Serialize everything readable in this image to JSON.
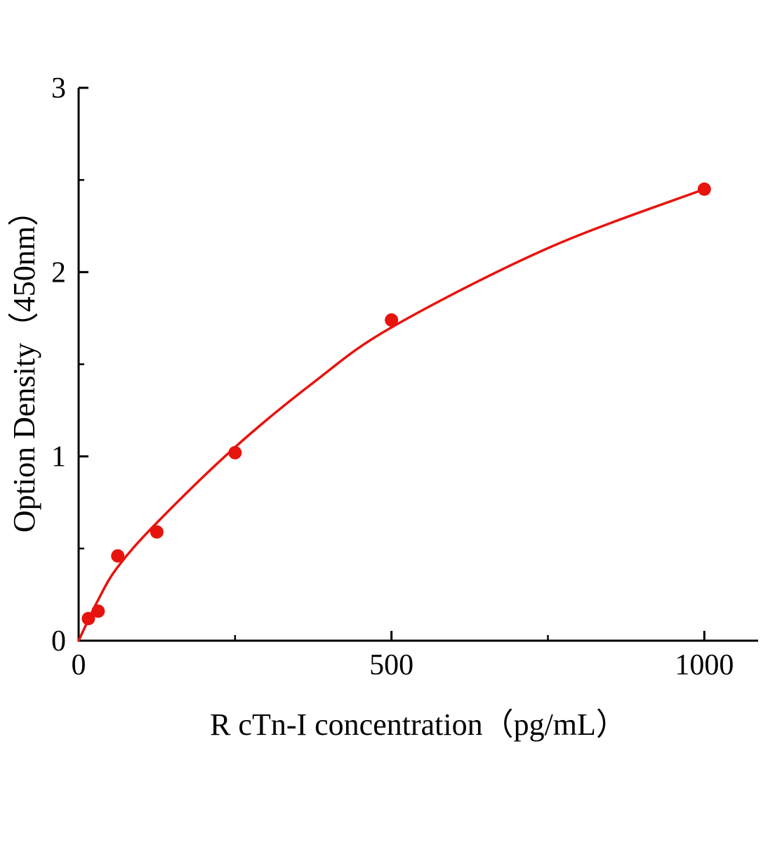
{
  "chart_data": {
    "type": "scatter",
    "title": "",
    "xlabel": "R cTn-I  concentration（pg/mL）",
    "ylabel": "Option Density（450nm）",
    "xlim": [
      0,
      1086
    ],
    "ylim": [
      0,
      3
    ],
    "xticks": [
      0,
      500,
      1000
    ],
    "xticks_minor": [
      250,
      750
    ],
    "yticks": [
      0,
      1,
      2,
      3
    ],
    "yticks_minor": [
      0.5,
      1.5,
      2.5
    ],
    "grid": "off",
    "legend": "none",
    "accent_color": "#e8130d",
    "axis_color": "#000000",
    "points": [
      {
        "x": 15.6,
        "y": 0.12
      },
      {
        "x": 31.2,
        "y": 0.16
      },
      {
        "x": 62.5,
        "y": 0.46
      },
      {
        "x": 125,
        "y": 0.59
      },
      {
        "x": 250,
        "y": 1.02
      },
      {
        "x": 500,
        "y": 1.74
      },
      {
        "x": 1000,
        "y": 2.45
      }
    ],
    "fit_curve": [
      {
        "x": 0,
        "y": 0.0
      },
      {
        "x": 31,
        "y": 0.22
      },
      {
        "x": 62.5,
        "y": 0.4
      },
      {
        "x": 125,
        "y": 0.64
      },
      {
        "x": 250,
        "y": 1.05
      },
      {
        "x": 375,
        "y": 1.4
      },
      {
        "x": 500,
        "y": 1.7
      },
      {
        "x": 750,
        "y": 2.13
      },
      {
        "x": 1000,
        "y": 2.45
      }
    ]
  }
}
